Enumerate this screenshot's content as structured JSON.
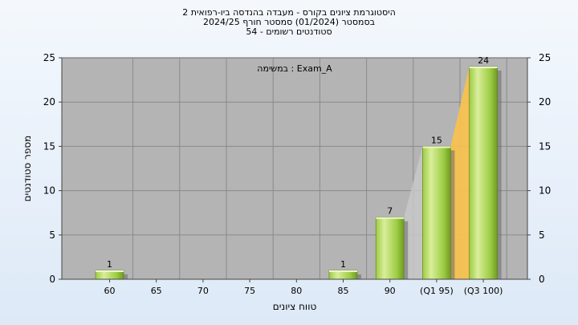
{
  "chart_data": {
    "type": "bar",
    "title_lines": [
      "היסטוגרמת ציונים בקורס - מעבדה בהנדסה ביו-רפואית 2",
      "בסמסטר  (01/2024)  סמסטר חורף 2024/25",
      "סטודנטים רשומים - 54"
    ],
    "annotation": "Exam_A : במשימה",
    "xlabel": "טווח ציונים",
    "ylabel": "מספר סטודנטים",
    "categories": [
      "60",
      "65",
      "70",
      "75",
      "80",
      "85",
      "90",
      "(Q1 95)",
      "(Q3 100)"
    ],
    "values": [
      1,
      0,
      0,
      0,
      0,
      1,
      7,
      15,
      24
    ],
    "data_labels": [
      "1",
      "",
      "",
      "",
      "",
      "1",
      "7",
      "15",
      "24"
    ],
    "ylim": [
      0,
      25
    ],
    "yticks": [
      0,
      5,
      10,
      15,
      20,
      25
    ],
    "grid": true,
    "secondary_y_axis": true,
    "highlight_band": {
      "from_category": "(Q1 95)",
      "to_category": "(Q3 100)",
      "color": "#f9c24a"
    },
    "colors": {
      "plot_bg": "#b4b4b4",
      "bar_light": "#d9ee9b",
      "bar_mid": "#9ccc43",
      "bar_dark": "#6f9a24"
    }
  }
}
